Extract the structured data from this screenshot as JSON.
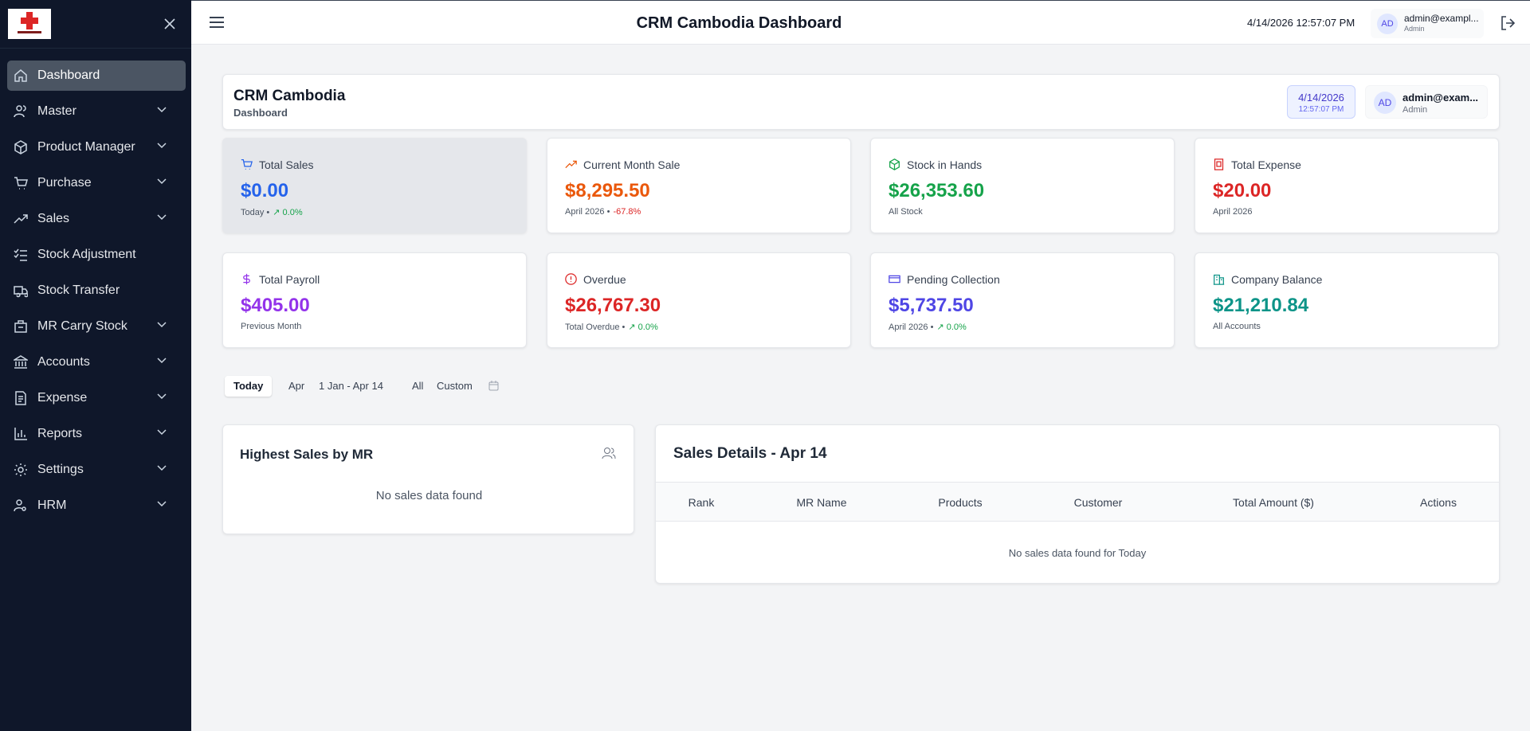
{
  "header": {
    "title": "CRM Cambodia Dashboard",
    "datetime": "4/14/2026 12:57:07 PM",
    "user": {
      "initials": "AD",
      "email": "admin@exampl...",
      "role": "Admin"
    }
  },
  "sidebar": {
    "items": [
      {
        "label": "Dashboard",
        "active": true,
        "expandable": false
      },
      {
        "label": "Master",
        "active": false,
        "expandable": true
      },
      {
        "label": "Product Manager",
        "active": false,
        "expandable": true
      },
      {
        "label": "Purchase",
        "active": false,
        "expandable": true
      },
      {
        "label": "Sales",
        "active": false,
        "expandable": true
      },
      {
        "label": "Stock Adjustment",
        "active": false,
        "expandable": false
      },
      {
        "label": "Stock Transfer",
        "active": false,
        "expandable": false
      },
      {
        "label": "MR Carry Stock",
        "active": false,
        "expandable": true
      },
      {
        "label": "Accounts",
        "active": false,
        "expandable": true
      },
      {
        "label": "Expense",
        "active": false,
        "expandable": true
      },
      {
        "label": "Reports",
        "active": false,
        "expandable": true
      },
      {
        "label": "Settings",
        "active": false,
        "expandable": true
      },
      {
        "label": "HRM",
        "active": false,
        "expandable": true
      }
    ]
  },
  "page_header": {
    "title": "CRM Cambodia",
    "subtitle": "Dashboard",
    "date": "4/14/2026",
    "time": "12:57:07 PM",
    "user": {
      "initials": "AD",
      "email": "admin@exam...",
      "role": "Admin"
    }
  },
  "stats": [
    {
      "label": "Total Sales",
      "value": "$0.00",
      "note": "Today •",
      "change": "↗ 0.0%",
      "color": "#2563eb",
      "change_color": "#16a34a",
      "highlight": true
    },
    {
      "label": "Current Month Sale",
      "value": "$8,295.50",
      "note": "April 2026 •",
      "change": "-67.8%",
      "color": "#ea580c",
      "change_color": "#dc2626",
      "highlight": false
    },
    {
      "label": "Stock in Hands",
      "value": "$26,353.60",
      "note": "All Stock",
      "color": "#16a34a",
      "highlight": false
    },
    {
      "label": "Total Expense",
      "value": "$20.00",
      "note": "April 2026",
      "color": "#dc2626",
      "highlight": false
    },
    {
      "label": "Total Payroll",
      "value": "$405.00",
      "note": "Previous Month",
      "color": "#9333ea",
      "highlight": false
    },
    {
      "label": "Overdue",
      "value": "$26,767.30",
      "note": "Total Overdue •",
      "change": "↗ 0.0%",
      "color": "#dc2626",
      "change_color": "#16a34a",
      "highlight": false
    },
    {
      "label": "Pending Collection",
      "value": "$5,737.50",
      "note": "April 2026 •",
      "change": "↗ 0.0%",
      "color": "#4f46e5",
      "change_color": "#16a34a",
      "highlight": false
    },
    {
      "label": "Company Balance",
      "value": "$21,210.84",
      "note": "All Accounts",
      "color": "#0d9488",
      "highlight": false
    }
  ],
  "filters": {
    "options": [
      "Today",
      "Apr",
      "1 Jan - Apr 14",
      "All",
      "Custom"
    ],
    "active": 0
  },
  "highest_sales": {
    "title": "Highest Sales by MR",
    "empty": "No sales data found"
  },
  "sales_details": {
    "title": "Sales Details - Apr 14",
    "columns": [
      "Rank",
      "MR Name",
      "Products",
      "Customer",
      "Total Amount ($)",
      "Actions"
    ],
    "empty": "No sales data found for Today"
  }
}
